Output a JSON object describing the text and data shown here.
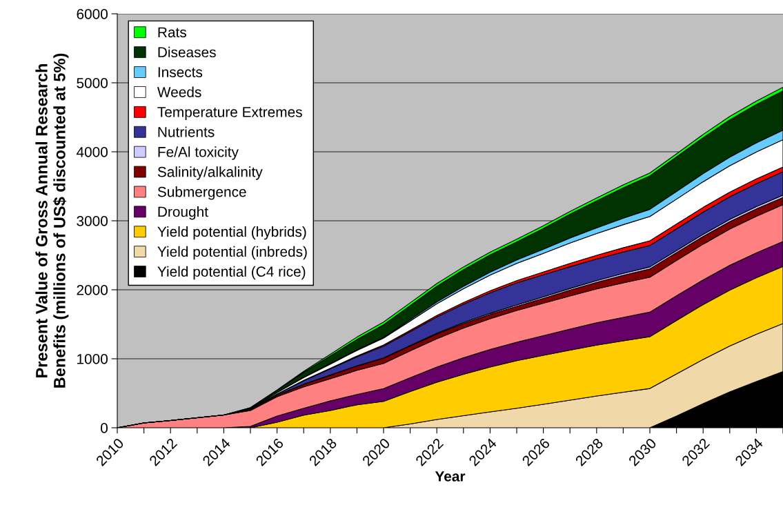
{
  "chart_data": {
    "type": "area",
    "stacked": true,
    "xlabel": "Year",
    "ylabel": "Present Value of Gross Annual Research\nBenefits (millions of US$ discounted at 5%)",
    "categories": [
      "2010",
      null,
      "2012",
      null,
      "2014",
      null,
      "2016",
      null,
      "2018",
      null,
      "2020",
      null,
      "2022",
      null,
      "2024",
      null,
      "2026",
      null,
      "2028",
      null,
      "2030",
      null,
      "2032",
      null,
      "2034",
      null
    ],
    "ylim": [
      0,
      6000
    ],
    "yticks": [
      0,
      1000,
      2000,
      3000,
      4000,
      5000,
      6000
    ],
    "grid": "y",
    "legend": "top left",
    "series": [
      {
        "name": "Yield potential (C4 rice)",
        "color": "#000000",
        "values": [
          0,
          0,
          0,
          0,
          0,
          0,
          0,
          0,
          0,
          0,
          0,
          0,
          0,
          0,
          0,
          0,
          0,
          0,
          0,
          0,
          0,
          170,
          350,
          520,
          670,
          814
        ]
      },
      {
        "name": "Yield potential (inbreds)",
        "color": "#f0d8a8",
        "values": [
          0,
          0,
          0,
          0,
          0,
          0,
          0,
          0,
          0,
          0,
          0,
          55,
          120,
          175,
          230,
          283,
          340,
          400,
          460,
          515,
          569,
          610,
          640,
          665,
          685,
          696
        ]
      },
      {
        "name": "Yield potential (hybrids)",
        "color": "#ffcc00",
        "values": [
          0,
          0,
          0,
          0,
          0,
          0,
          80,
          183,
          250,
          333,
          383,
          470,
          540,
          600,
          650,
          690,
          710,
          725,
          738,
          745,
          752,
          775,
          795,
          810,
          820,
          828
        ]
      },
      {
        "name": "Drought",
        "color": "#660066",
        "values": [
          0,
          0,
          0,
          0,
          0,
          20,
          90,
          100,
          140,
          150,
          184,
          200,
          220,
          240,
          255,
          267,
          285,
          305,
          325,
          340,
          355,
          357,
          358,
          360,
          361,
          362
        ]
      },
      {
        "name": "Submergence",
        "color": "#ff8080",
        "values": [
          0,
          70,
          105,
          145,
          185,
          230,
          280,
          310,
          320,
          350,
          366,
          390,
          410,
          430,
          445,
          460,
          470,
          480,
          490,
          500,
          507,
          512,
          518,
          524,
          530,
          534
        ]
      },
      {
        "name": "Salinity/alkalinity",
        "color": "#800000",
        "values": [
          0,
          0,
          0,
          0,
          0,
          15,
          20,
          35,
          50,
          60,
          74,
          70,
          68,
          65,
          62,
          60,
          70,
          85,
          95,
          110,
          120,
          115,
          112,
          108,
          106,
          104
        ]
      },
      {
        "name": "Fe/Al toxicity",
        "color": "#ccccff",
        "values": [
          0,
          0,
          0,
          0,
          0,
          0,
          2,
          3,
          4,
          5,
          5,
          8,
          11,
          14,
          17,
          20,
          22,
          24,
          25,
          27,
          28,
          29,
          30,
          32,
          33,
          34
        ]
      },
      {
        "name": "Nutrients",
        "color": "#333399",
        "values": [
          0,
          0,
          0,
          0,
          0,
          5,
          15,
          50,
          90,
          130,
          171,
          200,
          235,
          265,
          295,
          320,
          320,
          315,
          312,
          310,
          310,
          315,
          322,
          328,
          333,
          338
        ]
      },
      {
        "name": "Temperature Extremes",
        "color": "#ff0000",
        "values": [
          0,
          0,
          0,
          0,
          0,
          2,
          3,
          6,
          9,
          13,
          17,
          20,
          24,
          27,
          30,
          33,
          40,
          48,
          55,
          62,
          69,
          69,
          69,
          69,
          69,
          69
        ]
      },
      {
        "name": "Weeds",
        "color": "#ffffff",
        "values": [
          0,
          0,
          0,
          0,
          0,
          5,
          20,
          40,
          60,
          80,
          100,
          135,
          170,
          200,
          228,
          250,
          270,
          295,
          315,
          335,
          352,
          362,
          372,
          382,
          390,
          397
        ]
      },
      {
        "name": "Insects",
        "color": "#66ccff",
        "values": [
          0,
          0,
          0,
          0,
          0,
          2,
          3,
          5,
          7,
          8,
          10,
          18,
          27,
          35,
          43,
          50,
          60,
          72,
          82,
          94,
          104,
          111,
          118,
          125,
          132,
          138
        ]
      },
      {
        "name": "Diseases",
        "color": "#003300",
        "values": [
          0,
          0,
          0,
          0,
          0,
          10,
          30,
          70,
          110,
          150,
          183,
          205,
          225,
          240,
          250,
          260,
          300,
          345,
          390,
          440,
          484,
          500,
          520,
          540,
          555,
          569
        ]
      },
      {
        "name": "Rats",
        "color": "#00ff00",
        "values": [
          0,
          0,
          0,
          0,
          0,
          3,
          5,
          15,
          25,
          35,
          40,
          40,
          40,
          40,
          40,
          40,
          40,
          41,
          42,
          42,
          43,
          45,
          47,
          49,
          51,
          53
        ]
      }
    ]
  }
}
